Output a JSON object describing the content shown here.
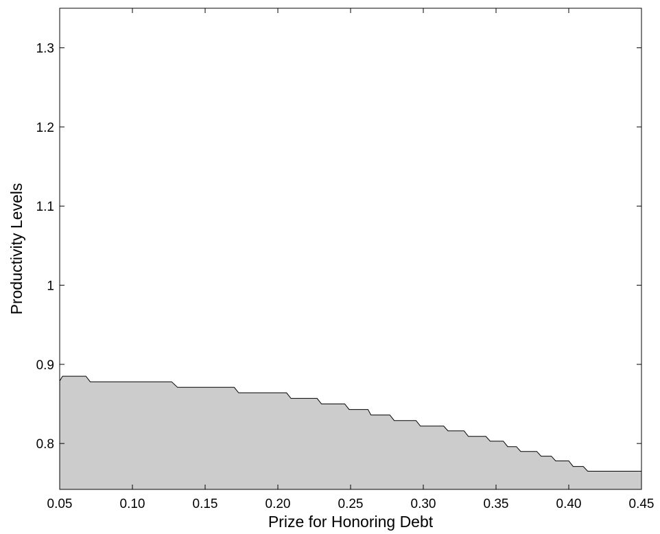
{
  "chart_data": {
    "type": "area",
    "xlabel": "Prize for Honoring Debt",
    "ylabel": "Productivity Levels",
    "xlim": [
      0.05,
      0.45
    ],
    "ylim": [
      0.742,
      1.35
    ],
    "xticks": [
      0.05,
      0.1,
      0.15,
      0.2,
      0.25,
      0.3,
      0.35,
      0.4,
      0.45
    ],
    "xtick_labels": [
      "0.05",
      "0.10",
      "0.15",
      "0.20",
      "0.25",
      "0.30",
      "0.35",
      "0.40",
      "0.45"
    ],
    "yticks": [
      0.8,
      0.9,
      1.0,
      1.1,
      1.2,
      1.3
    ],
    "ytick_labels": [
      "0.8",
      "0.9",
      "1",
      "1.1",
      "1.2",
      "1.3"
    ],
    "grid": false,
    "fill_color": "#cccccc",
    "line_color": "#000000",
    "series": [
      {
        "x": [
          0.05,
          0.052,
          0.068,
          0.071,
          0.127,
          0.131,
          0.17,
          0.173,
          0.206,
          0.209,
          0.227,
          0.23,
          0.246,
          0.249,
          0.262,
          0.264,
          0.277,
          0.28,
          0.295,
          0.298,
          0.314,
          0.317,
          0.328,
          0.331,
          0.343,
          0.346,
          0.355,
          0.358,
          0.364,
          0.367,
          0.378,
          0.381,
          0.388,
          0.391,
          0.4,
          0.403,
          0.41,
          0.413,
          0.418,
          0.421,
          0.43,
          0.433,
          0.443,
          0.446,
          0.45
        ],
        "y": [
          0.879,
          0.885,
          0.885,
          0.878,
          0.878,
          0.871,
          0.871,
          0.864,
          0.864,
          0.857,
          0.857,
          0.85,
          0.85,
          0.843,
          0.843,
          0.836,
          0.836,
          0.829,
          0.829,
          0.822,
          0.822,
          0.816,
          0.816,
          0.809,
          0.809,
          0.803,
          0.803,
          0.796,
          0.796,
          0.79,
          0.79,
          0.784,
          0.784,
          0.778,
          0.778,
          0.771,
          0.771,
          0.765,
          0.765,
          0.765,
          0.765,
          0.765,
          0.765,
          0.765,
          0.765
        ]
      }
    ]
  }
}
